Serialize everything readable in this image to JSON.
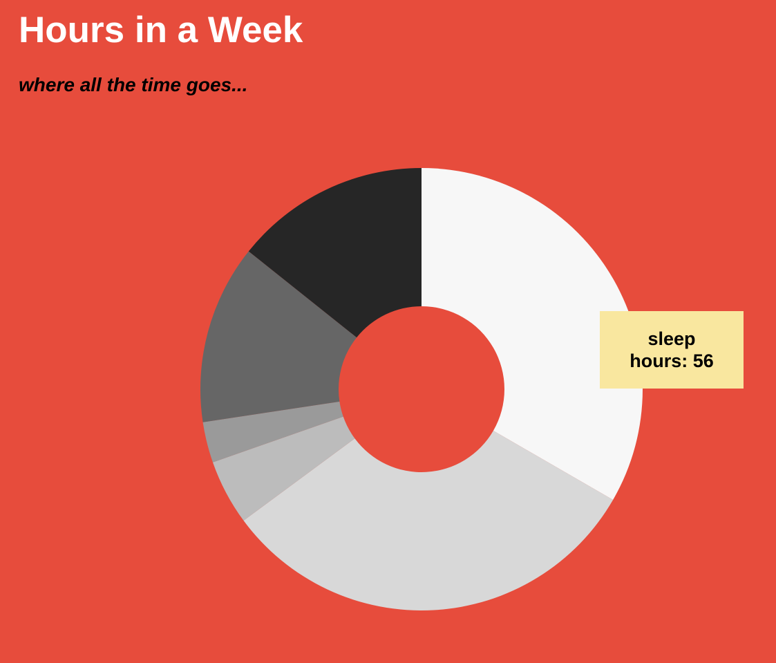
{
  "header": {
    "title": "Hours in a Week",
    "subtitle": "where all the time goes..."
  },
  "chart_data": {
    "type": "pie",
    "variant": "donut",
    "title": "Hours in a Week",
    "subtitle": "where all the time goes...",
    "total": 168,
    "start_angle": "top (12 o'clock), clockwise",
    "slices": [
      {
        "value": 56,
        "color": "#f7f7f7"
      },
      {
        "value": 53,
        "color": "#d8d8d8"
      },
      {
        "value": 8,
        "color": "#bcbcbc"
      },
      {
        "value": 5,
        "color": "#9a9a9a"
      },
      {
        "value": 22,
        "color": "#666666"
      },
      {
        "value": 24,
        "color": "#262626"
      }
    ],
    "legend": "none",
    "tooltip": {
      "label": "sleep",
      "value_text": "hours: 56",
      "value": 56,
      "background": "#f9e79f"
    }
  },
  "colors": {
    "background": "#e74c3c",
    "title": "#ffffff",
    "subtitle": "#000000"
  }
}
